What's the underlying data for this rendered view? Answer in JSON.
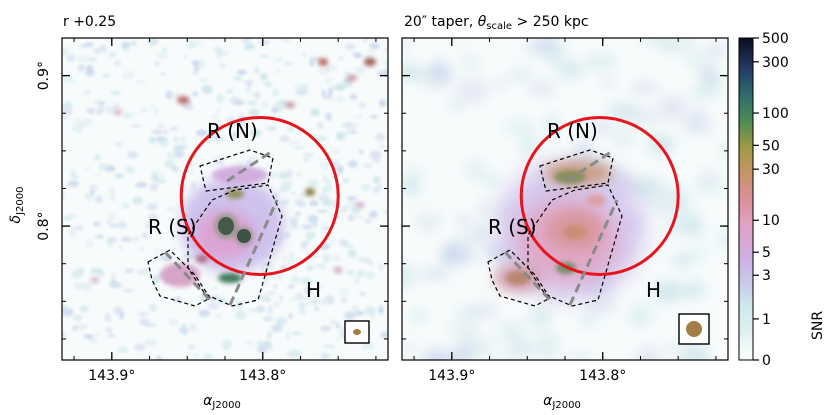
{
  "chart_data": [
    {
      "type": "heatmap",
      "title": "r +0.25",
      "xlabel": "α_J2000",
      "ylabel": "δ_J2000",
      "x_ticks": [
        {
          "value": 143.9,
          "label": "143.9°"
        },
        {
          "value": 143.8,
          "label": "143.8°"
        }
      ],
      "y_ticks": [
        {
          "value": 0.9,
          "label": "0.9°"
        },
        {
          "value": 0.8,
          "label": "0.8°"
        }
      ],
      "xlim": [
        143.933,
        143.717
      ],
      "ylim": [
        0.711,
        0.925
      ],
      "annotations": [
        {
          "text": "R (N)",
          "ra": 143.807,
          "dec": 0.865
        },
        {
          "text": "R (S)",
          "ra": 143.873,
          "dec": 0.801
        },
        {
          "text": "H",
          "ra": 143.75,
          "dec": 0.751
        }
      ],
      "circle": {
        "ra": 143.802,
        "dec": 0.82,
        "radius_deg": 0.052,
        "color": "#e41a1c"
      },
      "beam": {
        "ra": 143.728,
        "dec": 0.73,
        "major_deg": 0.0035,
        "minor_deg": 0.002
      }
    },
    {
      "type": "heatmap",
      "title": "20″ taper, θ_scale > 250 kpc",
      "xlabel": "α_J2000",
      "x_ticks": [
        {
          "value": 143.9,
          "label": "143.9°"
        },
        {
          "value": 143.8,
          "label": "143.8°"
        }
      ],
      "xlim": [
        143.933,
        143.717
      ],
      "ylim": [
        0.711,
        0.925
      ],
      "annotations": [
        {
          "text": "R (N)",
          "ra": 143.807,
          "dec": 0.865
        },
        {
          "text": "R (S)",
          "ra": 143.873,
          "dec": 0.801
        },
        {
          "text": "H",
          "ra": 143.75,
          "dec": 0.751
        }
      ],
      "circle": {
        "ra": 143.802,
        "dec": 0.82,
        "radius_deg": 0.052,
        "color": "#e41a1c"
      },
      "beam": {
        "ra": 143.728,
        "dec": 0.73,
        "major_deg": 0.0083,
        "minor_deg": 0.0083
      }
    }
  ],
  "colorbar": {
    "label": "SNR",
    "ticks": [
      "500",
      "300",
      "100",
      "50",
      "30",
      "10",
      "5",
      "3",
      "1",
      "0"
    ],
    "tick_values": [
      500,
      300,
      100,
      50,
      30,
      10,
      5,
      3,
      1,
      0
    ]
  }
}
